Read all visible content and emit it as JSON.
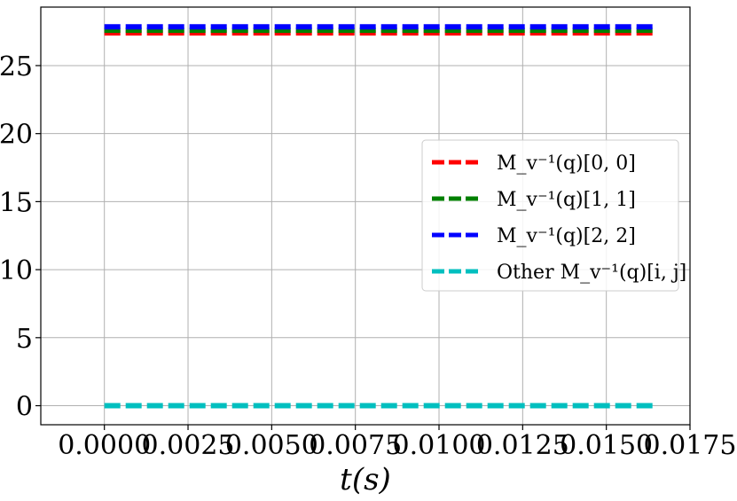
{
  "chart_data": {
    "type": "line",
    "xlabel": "t(s)",
    "ylabel": "",
    "xlim": [
      -0.0019,
      0.0175
    ],
    "ylim": [
      -1.4,
      29.3
    ],
    "x_ticks": [
      0.0,
      0.0025,
      0.005,
      0.0075,
      0.01,
      0.0125,
      0.015,
      0.0175
    ],
    "x_tick_labels": [
      "0.0000",
      "0.0025",
      "0.0050",
      "0.0075",
      "0.0100",
      "0.0125",
      "0.0150",
      "0.0175"
    ],
    "y_ticks": [
      0,
      5,
      10,
      15,
      20,
      25
    ],
    "y_tick_labels": [
      "0",
      "5",
      "10",
      "15",
      "20",
      "25"
    ],
    "grid": true,
    "legend_position": "center-right",
    "x": [
      0.0,
      0.0165
    ],
    "series": [
      {
        "name": "M_v^{-1}(q)[0,0]",
        "legend": "M_v⁻¹(q)[0, 0]",
        "color": "#ff0000",
        "values": [
          27.4,
          27.4
        ]
      },
      {
        "name": "M_v^{-1}(q)[1,1]",
        "legend": "M_v⁻¹(q)[1, 1]",
        "color": "#008000",
        "values": [
          27.6,
          27.6
        ]
      },
      {
        "name": "M_v^{-1}(q)[2,2]",
        "legend": "M_v⁻¹(q)[2, 2]",
        "color": "#0000ff",
        "values": [
          27.85,
          27.85
        ]
      },
      {
        "name": "Other M_v^{-1}(q)[i,j]",
        "legend": "Other M_v⁻¹(q)[i, j]",
        "color": "#00bfbf",
        "values": [
          0.0,
          0.0
        ]
      }
    ]
  }
}
